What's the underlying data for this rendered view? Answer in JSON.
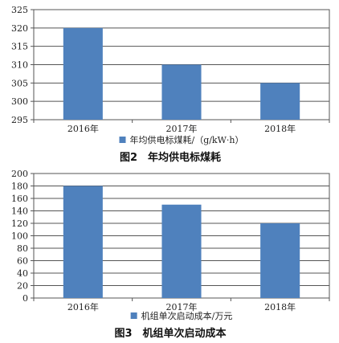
{
  "chart_data": [
    {
      "type": "bar",
      "categories": [
        "2016年",
        "2017年",
        "2018年"
      ],
      "series": [
        {
          "name": "年均供电标煤耗/（g/kW·h）",
          "values": [
            320,
            310,
            305
          ]
        }
      ],
      "ylim": [
        295,
        325
      ],
      "yticks": [
        295,
        300,
        305,
        310,
        315,
        320,
        325
      ],
      "grid": true,
      "legend_position": "bottom",
      "bar_color": "#4f81bd",
      "caption": "图2　年均供电标煤耗"
    },
    {
      "type": "bar",
      "categories": [
        "2016年",
        "2017年",
        "2018年"
      ],
      "series": [
        {
          "name": "机组单次启动成本/万元",
          "values": [
            180,
            150,
            120
          ]
        }
      ],
      "ylim": [
        0,
        200
      ],
      "yticks": [
        0,
        20,
        40,
        60,
        80,
        100,
        120,
        140,
        160,
        180,
        200
      ],
      "grid": true,
      "legend_position": "bottom",
      "bar_color": "#4f81bd",
      "caption": "图3　机组单次启动成本"
    }
  ]
}
